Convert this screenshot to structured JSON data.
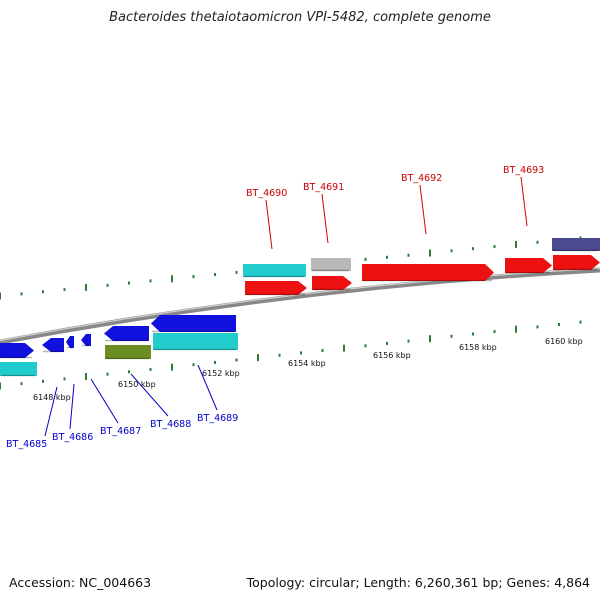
{
  "title": "Bacteroides thetaiotaomicron VPI-5482, complete genome",
  "accession_label": "Accession: NC_004663",
  "stats_label": "Topology: circular; Length: 6,260,361 bp; Genes: 4,864",
  "colors": {
    "backbone": "#888888",
    "tick": "#2e7d32",
    "upper_labels": "#cc0000",
    "lower_labels": "#0000cc",
    "red": "#ee1111",
    "cyan": "#22cccc",
    "blue": "#1111dd",
    "green": "#6b8e23",
    "gray": "#b8b8b8",
    "slate": "#4a4a90"
  },
  "kbp_labels": [
    "6148 kbp",
    "6150 kbp",
    "6152 kbp",
    "6154 kbp",
    "6156 kbp",
    "6158 kbp",
    "6160 kbp"
  ],
  "upper_genes": [
    "BT_4690",
    "BT_4691",
    "BT_4692",
    "BT_4693"
  ],
  "lower_genes": [
    "BT_4685",
    "BT_4686",
    "BT_4687",
    "BT_4688",
    "BT_4689"
  ]
}
